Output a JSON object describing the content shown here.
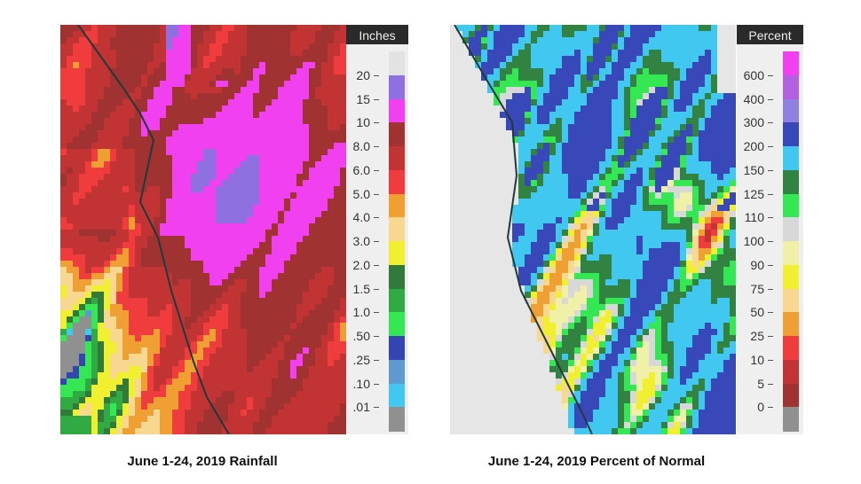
{
  "left_panel": {
    "caption": "June 1-24, 2019 Rainfall",
    "legend_unit": "Inches",
    "legend_labels": [
      "20",
      "15",
      "10",
      "8.0",
      "6.0",
      "5.0",
      "4.0",
      "3.0",
      "2.0",
      "1.5",
      "1.0",
      ".50",
      ".25",
      ".10",
      ".01"
    ],
    "legend_colors": [
      "#e2e2e2",
      "#8f70e0",
      "#f040f0",
      "#a03232",
      "#c23434",
      "#f03c3c",
      "#f0a032",
      "#f8d890",
      "#f0f030",
      "#327a3c",
      "#32aa44",
      "#34e854",
      "#3444b0",
      "#6098d0",
      "#40c8f0",
      "#909090"
    ]
  },
  "right_panel": {
    "caption": "June 1-24, 2019 Percent of Normal",
    "legend_unit": "Percent",
    "legend_labels": [
      "600",
      "400",
      "300",
      "200",
      "150",
      "125",
      "110",
      "100",
      "90",
      "75",
      "50",
      "25",
      "10",
      "5",
      "0"
    ],
    "legend_colors": [
      "#f040f0",
      "#b060e0",
      "#9080e0",
      "#3848b8",
      "#40c8f0",
      "#328242",
      "#34e854",
      "#d8d8d8",
      "#f0f0a8",
      "#f0f030",
      "#f8d890",
      "#f0a032",
      "#f03c3c",
      "#c23434",
      "#a03232",
      "#909090"
    ]
  }
}
